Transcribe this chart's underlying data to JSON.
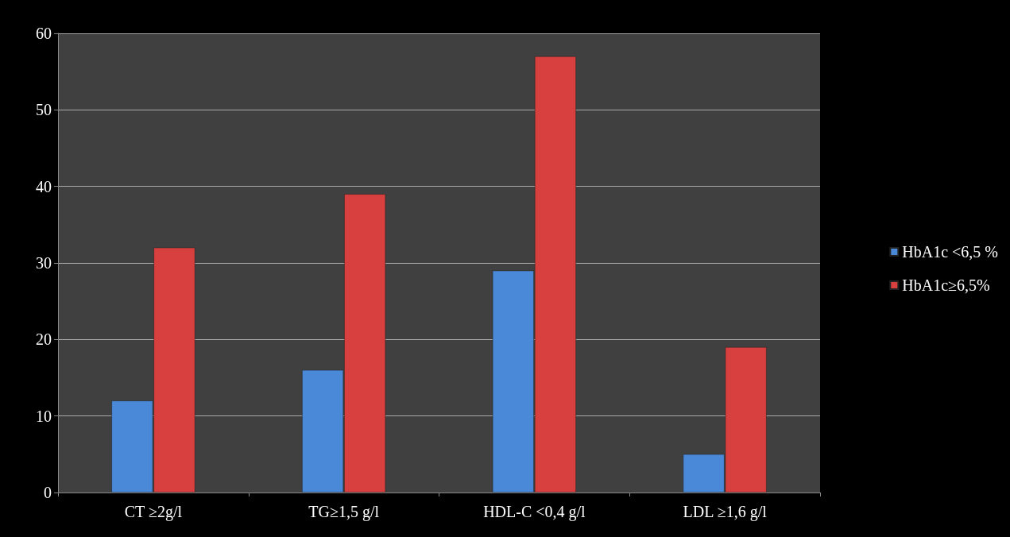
{
  "chart_data": {
    "type": "bar",
    "categories": [
      "CT ≥2g/l",
      "TG≥1,5 g/l",
      "HDL-C <0,4 g/l",
      "LDL ≥1,6 g/l"
    ],
    "series": [
      {
        "name": "HbA1c <6,5 %",
        "color": "#4a88d8",
        "values": [
          12,
          16,
          29,
          5
        ]
      },
      {
        "name": "HbA1c≥6,5%",
        "color": "#d84040",
        "values": [
          32,
          39,
          57,
          19
        ]
      }
    ],
    "ylim": [
      0,
      60
    ],
    "yticks": [
      0,
      10,
      20,
      30,
      40,
      50,
      60
    ],
    "grid": "y",
    "legend": "right"
  }
}
